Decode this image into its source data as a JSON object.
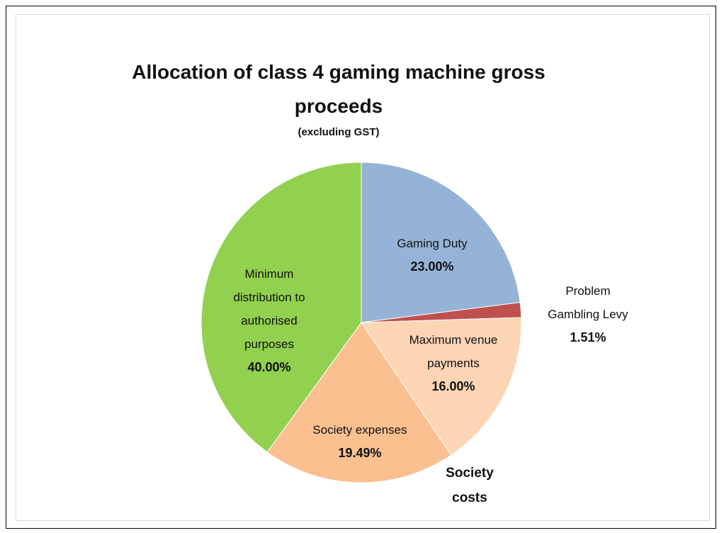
{
  "chart_data": {
    "type": "pie",
    "title": "Allocation of class 4 gaming machine gross proceeds",
    "subtitle": "(excluding GST)",
    "categories": [
      "Gaming Duty",
      "Problem Gambling Levy",
      "Maximum venue payments",
      "Society expenses",
      "Minimum distribution to authorised purposes"
    ],
    "values": [
      23,
      1.51,
      16,
      19.49,
      40
    ],
    "value_labels": [
      "23.00%",
      "1.51%",
      "16.00%",
      "19.49%",
      "40.00%"
    ],
    "colors": [
      "#95b3d7",
      "#c0504d",
      "#fcd5b5",
      "#fac090",
      "#92d050"
    ],
    "annotations": [
      "Society costs"
    ]
  }
}
